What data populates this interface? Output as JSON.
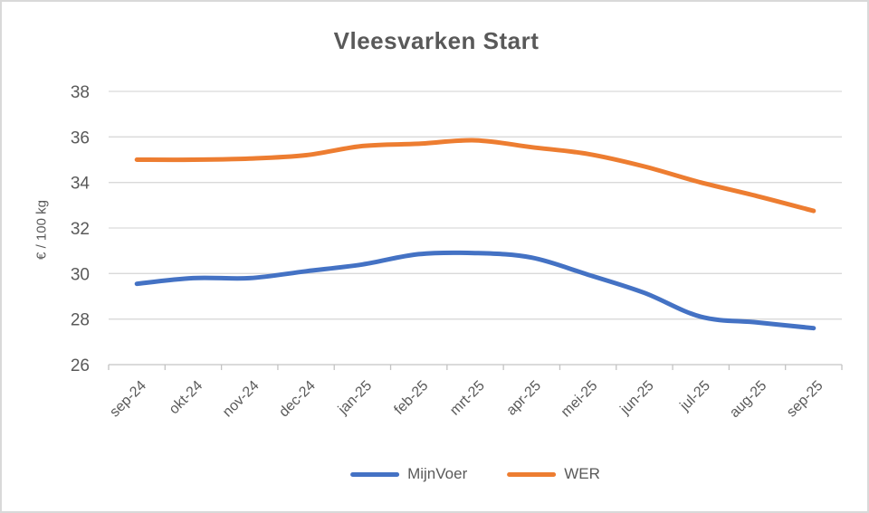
{
  "title": "Vleesvarken Start",
  "chart_data": {
    "type": "line",
    "title": "Vleesvarken Start",
    "xlabel": "",
    "ylabel": "€ / 100 kg",
    "categories": [
      "sep-24",
      "okt-24",
      "nov-24",
      "dec-24",
      "jan-25",
      "feb-25",
      "mrt-25",
      "apr-25",
      "mei-25",
      "jun-25",
      "jul-25",
      "aug-25",
      "sep-25"
    ],
    "series": [
      {
        "name": "MijnVoer",
        "color": "#4472C4",
        "values": [
          29.55,
          29.8,
          29.8,
          30.1,
          30.4,
          30.85,
          30.9,
          30.7,
          29.95,
          29.15,
          28.1,
          27.85,
          27.6
        ]
      },
      {
        "name": "WER",
        "color": "#ED7D31",
        "values": [
          35.0,
          35.0,
          35.05,
          35.2,
          35.6,
          35.7,
          35.85,
          35.55,
          35.25,
          34.7,
          34.0,
          33.4,
          32.75
        ]
      }
    ],
    "ylim": [
      26,
      38
    ],
    "yticks": [
      26,
      28,
      30,
      32,
      34,
      36,
      38
    ],
    "grid": true,
    "smooth_lines": true,
    "legend_position": "bottom"
  },
  "colors": {
    "text": "#595959",
    "gridline": "#d9d9d9",
    "axis": "#c3c3c3",
    "frame_border": "#d9d9d9",
    "background": "#ffffff"
  }
}
